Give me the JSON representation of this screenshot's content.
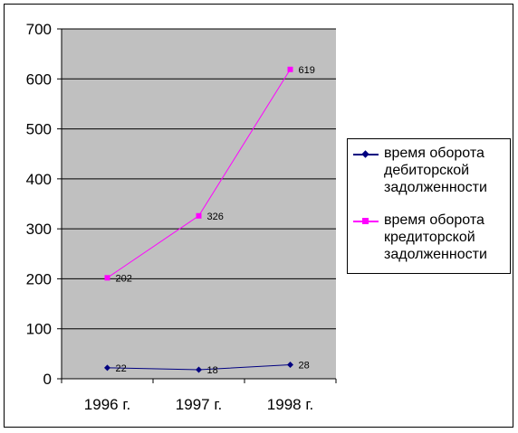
{
  "chart_data": {
    "type": "line",
    "categories": [
      "1996 г.",
      "1997 г.",
      "1998 г."
    ],
    "ylim": [
      0,
      700
    ],
    "yticks": [
      0,
      100,
      200,
      300,
      400,
      500,
      600,
      700
    ],
    "grid": true,
    "legend_position": "right",
    "plot_background": "#c0c0c0",
    "series": [
      {
        "name": "время оборота дебиторской задолженности",
        "values": [
          22,
          18,
          28
        ],
        "labels": [
          "22",
          "18",
          "28"
        ],
        "color": "#000080",
        "marker": "diamond"
      },
      {
        "name": "время оборота кредиторской задолженности",
        "values": [
          202,
          326,
          619
        ],
        "labels": [
          "202",
          "326",
          "619"
        ],
        "color": "#ff00ff",
        "marker": "square"
      }
    ]
  },
  "legend": {
    "items": [
      {
        "text": "время оборота\nдебиторской\nзадолженности"
      },
      {
        "text": "время оборота\nкредиторской\nзадолженности"
      }
    ]
  }
}
